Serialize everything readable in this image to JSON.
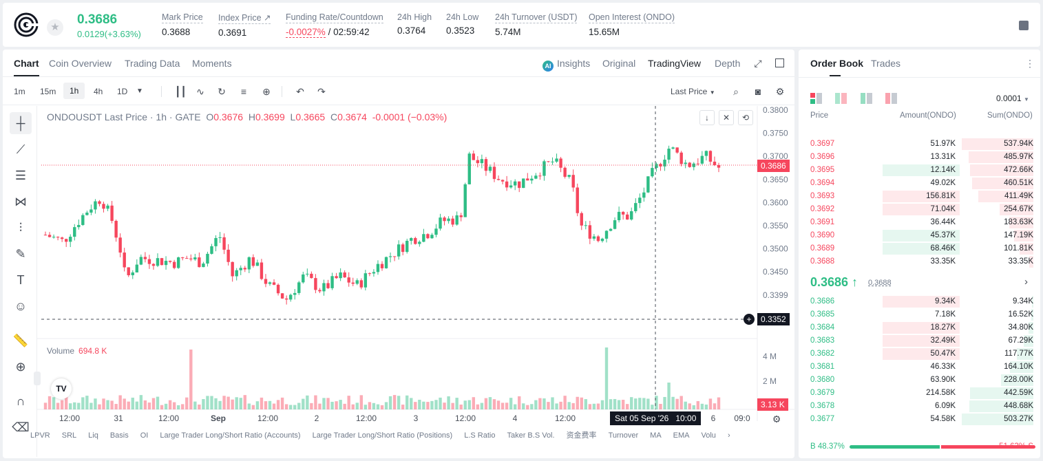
{
  "header": {
    "last_price": "0.3686",
    "change": "0.0129(+3.63%)",
    "stats": [
      {
        "label": "Mark Price",
        "value": "0.3688"
      },
      {
        "label": "Index Price ↗",
        "value": "0.3691"
      },
      {
        "label": "Funding Rate/Countdown",
        "value_neg": "-0.0027%",
        "value": "/ 02:59:42"
      },
      {
        "label": "24h High",
        "value": "0.3764"
      },
      {
        "label": "24h Low",
        "value": "0.3523"
      },
      {
        "label": "24h Turnover (USDT)",
        "value": "5.74M"
      },
      {
        "label": "Open Interest (ONDO)",
        "value": "15.65M"
      }
    ]
  },
  "chart_tabs": [
    "Chart",
    "Coin Overview",
    "Trading Data",
    "Moments"
  ],
  "view_tabs": {
    "insights": "Insights",
    "original": "Original",
    "tradingview": "TradingView",
    "depth": "Depth"
  },
  "timeframes": [
    "1m",
    "15m",
    "1h",
    "4h",
    "1D"
  ],
  "toolbar": {
    "last_price_label": "Last Price"
  },
  "legend": {
    "symbol": "ONDOUSDT Last Price · 1h · GATE",
    "o": "0.3676",
    "h": "0.3699",
    "l": "0.3665",
    "c": "0.3674",
    "chg": "-0.0001 (−0.03%)"
  },
  "volume_legend": {
    "label": "Volume",
    "value": "694.8 K"
  },
  "price_axis": [
    "0.3800",
    "0.3750",
    "0.3700",
    "0.3650",
    "0.3600",
    "0.3550",
    "0.3500",
    "0.3450",
    "0.3399"
  ],
  "volume_axis": [
    "4 M",
    "2 M"
  ],
  "time_axis": [
    "12:00",
    "31",
    "12:00",
    "Sep",
    "12:00",
    "2",
    "12:00",
    "3",
    "12:00",
    "4",
    "12:00",
    "6",
    "09:0"
  ],
  "price_tags": {
    "last": "0.3686",
    "crosshair": "0.3352",
    "volume": "3.13 K"
  },
  "crosshair_time": {
    "date": "Sat 05 Sep '26",
    "time": "10:00"
  },
  "indicators": [
    "LPVR",
    "SRL",
    "Liq",
    "Basis",
    "OI",
    "Large Trader Long/Short Ratio (Accounts)",
    "Large Trader Long/Short Ratio (Positions)",
    "L.S Ratio",
    "Taker B.S Vol.",
    "资金费率",
    "Turnover",
    "MA",
    "EMA",
    "Volu"
  ],
  "colors": {
    "up": "#2ebd85",
    "down": "#f6465d"
  },
  "order_book": {
    "tabs": [
      "Order Book",
      "Trades"
    ],
    "precision": "0.0001",
    "headers": {
      "price": "Price",
      "amount": "Amount(ONDO)",
      "sum": "Sum(ONDO)"
    },
    "asks": [
      {
        "price": "0.3697",
        "amount": "51.97K",
        "sum": "537.94K",
        "a": 0.0,
        "s": 1.0
      },
      {
        "price": "0.3696",
        "amount": "13.31K",
        "sum": "485.97K",
        "a": 0.0,
        "s": 0.9
      },
      {
        "price": "0.3695",
        "amount": "12.14K",
        "sum": "472.66K",
        "a": 1.0,
        "s": 0.88,
        "green": true
      },
      {
        "price": "0.3694",
        "amount": "49.02K",
        "sum": "460.51K",
        "a": 0.0,
        "s": 0.86
      },
      {
        "price": "0.3693",
        "amount": "156.81K",
        "sum": "411.49K",
        "a": 1.0,
        "s": 0.77
      },
      {
        "price": "0.3692",
        "amount": "71.04K",
        "sum": "254.67K",
        "a": 1.0,
        "s": 0.47
      },
      {
        "price": "0.3691",
        "amount": "36.44K",
        "sum": "183.63K",
        "a": 0.0,
        "s": 0.34
      },
      {
        "price": "0.3690",
        "amount": "45.37K",
        "sum": "147.19K",
        "a": 1.0,
        "s": 0.27,
        "green": true
      },
      {
        "price": "0.3689",
        "amount": "68.46K",
        "sum": "101.81K",
        "a": 1.0,
        "s": 0.19,
        "green": true
      },
      {
        "price": "0.3688",
        "amount": "33.35K",
        "sum": "33.35K",
        "a": 0.0,
        "s": 0.06
      }
    ],
    "mid_price": "0.3686 ↑",
    "mid_mark": "0.3688",
    "bids": [
      {
        "price": "0.3686",
        "amount": "9.34K",
        "sum": "9.34K",
        "a": 1.0,
        "s": 0.02,
        "red": true
      },
      {
        "price": "0.3685",
        "amount": "7.18K",
        "sum": "16.52K",
        "a": 0.0,
        "s": 0.03
      },
      {
        "price": "0.3684",
        "amount": "18.27K",
        "sum": "34.80K",
        "a": 1.0,
        "s": 0.07,
        "red": true
      },
      {
        "price": "0.3683",
        "amount": "32.49K",
        "sum": "67.29K",
        "a": 1.0,
        "s": 0.13,
        "red": true
      },
      {
        "price": "0.3682",
        "amount": "50.47K",
        "sum": "117.77K",
        "a": 1.0,
        "s": 0.23,
        "red": true
      },
      {
        "price": "0.3681",
        "amount": "46.33K",
        "sum": "164.10K",
        "a": 0.0,
        "s": 0.33
      },
      {
        "price": "0.3680",
        "amount": "63.90K",
        "sum": "228.00K",
        "a": 0.0,
        "s": 0.45
      },
      {
        "price": "0.3679",
        "amount": "214.58K",
        "sum": "442.59K",
        "a": 0.0,
        "s": 0.88
      },
      {
        "price": "0.3678",
        "amount": "6.09K",
        "sum": "448.68K",
        "a": 0.0,
        "s": 0.89
      },
      {
        "price": "0.3677",
        "amount": "54.58K",
        "sum": "503.27K",
        "a": 0.0,
        "s": 1.0
      }
    ],
    "ratio": {
      "buy": "B 48.37%",
      "sell": "51.63% S",
      "buy_pct": 48.37
    }
  }
}
